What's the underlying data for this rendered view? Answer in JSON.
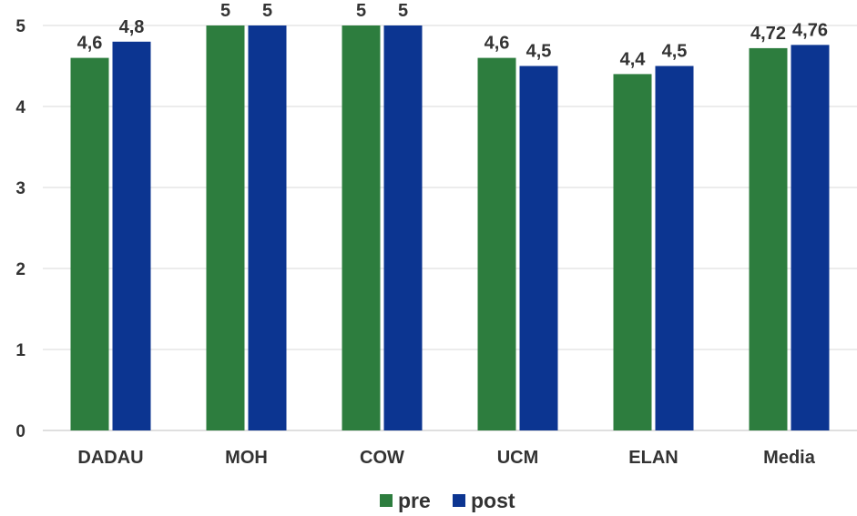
{
  "chart_data": {
    "type": "bar",
    "title": "",
    "xlabel": "",
    "ylabel": "",
    "categories": [
      "DADAU",
      "MOH",
      "COW",
      "UCM",
      "ELAN",
      "Media"
    ],
    "series": [
      {
        "name": "pre",
        "color": "#2d7d3e",
        "values": [
          4.6,
          5,
          5,
          4.6,
          4.4,
          4.72
        ],
        "labels": [
          "4,6",
          "5",
          "5",
          "4,6",
          "4,4",
          "4,72"
        ]
      },
      {
        "name": "post",
        "color": "#0c3591",
        "values": [
          4.8,
          5,
          5,
          4.5,
          4.5,
          4.76
        ],
        "labels": [
          "4,8",
          "5",
          "5",
          "4,5",
          "4,5",
          "4,76"
        ]
      }
    ],
    "ylim": [
      0,
      5
    ],
    "yticks": [
      "0",
      "1",
      "2",
      "3",
      "4",
      "5"
    ],
    "grid": true,
    "legend_position": "bottom"
  }
}
